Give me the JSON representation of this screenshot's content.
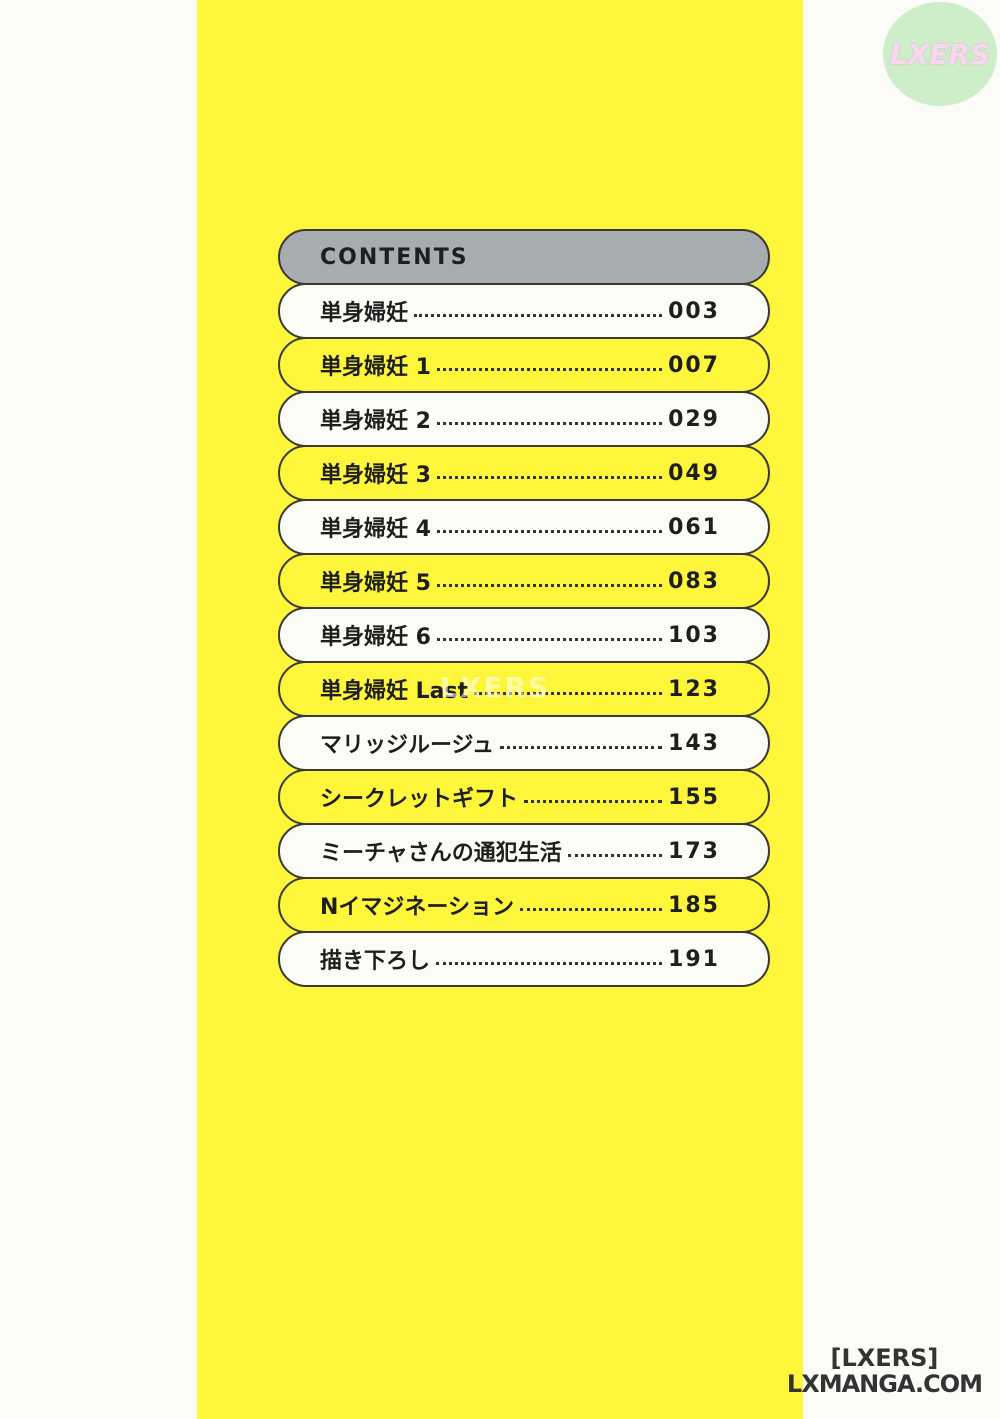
{
  "header": {
    "title": "CONTENTS"
  },
  "entries": [
    {
      "title": "単身婦妊",
      "page": "003",
      "style": "white"
    },
    {
      "title": "単身婦妊 1",
      "page": "007",
      "style": "yellow"
    },
    {
      "title": "単身婦妊 2",
      "page": "029",
      "style": "white"
    },
    {
      "title": "単身婦妊 3",
      "page": "049",
      "style": "yellow"
    },
    {
      "title": "単身婦妊 4",
      "page": "061",
      "style": "white"
    },
    {
      "title": "単身婦妊 5",
      "page": "083",
      "style": "yellow"
    },
    {
      "title": "単身婦妊 6",
      "page": "103",
      "style": "white"
    },
    {
      "title": "単身婦妊 Last",
      "page": "123",
      "style": "yellow"
    },
    {
      "title": "マリッジルージュ",
      "page": "143",
      "style": "white"
    },
    {
      "title": "シークレットギフト",
      "page": "155",
      "style": "yellow"
    },
    {
      "title": "ミーチャさんの通犯生活",
      "page": "173",
      "style": "white"
    },
    {
      "title": "Nイマジネーション",
      "page": "185",
      "style": "yellow"
    },
    {
      "title": "描き下ろし",
      "page": "191",
      "style": "white"
    }
  ],
  "watermarks": {
    "logo": "LXERS",
    "center": "LXERS",
    "corner_line1": "[LXERS]",
    "corner_line2": "LXMANGA.COM"
  },
  "colors": {
    "cover": "#fdf63a",
    "header": "#a7acae",
    "white_row": "#fcfcf6"
  }
}
